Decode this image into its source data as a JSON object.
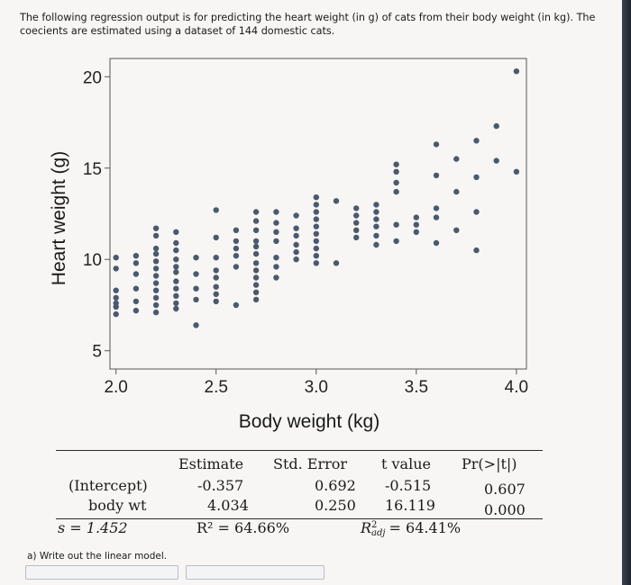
{
  "intro_text": "The following regression output is for predicting the heart weight (in g) of cats from their body weight (in kg). The coecients are estimated using a dataset of 144 domestic cats.",
  "chart_data": {
    "type": "scatter",
    "title": "",
    "xlabel": "Body weight (kg)",
    "ylabel": "Heart weight (g)",
    "xlim": [
      1.97,
      4.05
    ],
    "ylim": [
      4.0,
      21.0
    ],
    "x_ticks": [
      2.0,
      2.5,
      3.0,
      3.5,
      4.0
    ],
    "x_tick_labels": [
      "2.0",
      "2.5",
      "3.0",
      "3.5",
      "4.0"
    ],
    "y_ticks": [
      5,
      10,
      15,
      20
    ],
    "y_tick_labels": [
      "5",
      "10",
      "15",
      "20"
    ],
    "grid": false,
    "point_color": "#4a5a6e",
    "points": [
      [
        2.0,
        7.0
      ],
      [
        2.0,
        7.4
      ],
      [
        2.0,
        7.6
      ],
      [
        2.0,
        7.9
      ],
      [
        2.0,
        8.3
      ],
      [
        2.0,
        9.5
      ],
      [
        2.0,
        10.1
      ],
      [
        2.1,
        7.2
      ],
      [
        2.1,
        7.7
      ],
      [
        2.1,
        8.4
      ],
      [
        2.1,
        9.2
      ],
      [
        2.1,
        9.8
      ],
      [
        2.1,
        10.2
      ],
      [
        2.2,
        7.1
      ],
      [
        2.2,
        7.5
      ],
      [
        2.2,
        7.9
      ],
      [
        2.2,
        8.3
      ],
      [
        2.2,
        8.7
      ],
      [
        2.2,
        9.1
      ],
      [
        2.2,
        9.5
      ],
      [
        2.2,
        9.9
      ],
      [
        2.2,
        10.3
      ],
      [
        2.2,
        10.6
      ],
      [
        2.2,
        11.3
      ],
      [
        2.2,
        11.7
      ],
      [
        2.3,
        7.3
      ],
      [
        2.3,
        7.6
      ],
      [
        2.3,
        8.0
      ],
      [
        2.3,
        8.4
      ],
      [
        2.3,
        8.8
      ],
      [
        2.3,
        9.3
      ],
      [
        2.3,
        9.6
      ],
      [
        2.3,
        10.0
      ],
      [
        2.3,
        10.5
      ],
      [
        2.3,
        10.9
      ],
      [
        2.3,
        11.5
      ],
      [
        2.4,
        6.4
      ],
      [
        2.4,
        7.8
      ],
      [
        2.4,
        8.4
      ],
      [
        2.4,
        9.2
      ],
      [
        2.4,
        10.1
      ],
      [
        2.5,
        7.7
      ],
      [
        2.5,
        8.1
      ],
      [
        2.5,
        8.5
      ],
      [
        2.5,
        9.0
      ],
      [
        2.5,
        9.4
      ],
      [
        2.5,
        10.1
      ],
      [
        2.5,
        11.2
      ],
      [
        2.5,
        12.7
      ],
      [
        2.6,
        7.5
      ],
      [
        2.6,
        9.6
      ],
      [
        2.6,
        10.2
      ],
      [
        2.6,
        10.6
      ],
      [
        2.6,
        11.0
      ],
      [
        2.6,
        11.6
      ],
      [
        2.7,
        7.8
      ],
      [
        2.7,
        8.2
      ],
      [
        2.7,
        8.6
      ],
      [
        2.7,
        9.0
      ],
      [
        2.7,
        9.4
      ],
      [
        2.7,
        9.8
      ],
      [
        2.7,
        10.3
      ],
      [
        2.7,
        10.7
      ],
      [
        2.7,
        11.0
      ],
      [
        2.7,
        11.6
      ],
      [
        2.7,
        12.1
      ],
      [
        2.7,
        12.6
      ],
      [
        2.8,
        9.0
      ],
      [
        2.8,
        9.6
      ],
      [
        2.8,
        10.1
      ],
      [
        2.8,
        11.0
      ],
      [
        2.8,
        11.5
      ],
      [
        2.8,
        12.0
      ],
      [
        2.8,
        12.6
      ],
      [
        2.9,
        10.0
      ],
      [
        2.9,
        10.4
      ],
      [
        2.9,
        10.8
      ],
      [
        2.9,
        11.3
      ],
      [
        2.9,
        11.7
      ],
      [
        2.9,
        12.4
      ],
      [
        3.0,
        9.8
      ],
      [
        3.0,
        10.2
      ],
      [
        3.0,
        10.6
      ],
      [
        3.0,
        11.0
      ],
      [
        3.0,
        11.4
      ],
      [
        3.0,
        11.8
      ],
      [
        3.0,
        12.2
      ],
      [
        3.0,
        12.6
      ],
      [
        3.0,
        13.0
      ],
      [
        3.0,
        13.4
      ],
      [
        3.1,
        9.8
      ],
      [
        3.1,
        13.2
      ],
      [
        3.2,
        11.2
      ],
      [
        3.2,
        11.6
      ],
      [
        3.2,
        12.0
      ],
      [
        3.2,
        12.4
      ],
      [
        3.2,
        12.8
      ],
      [
        3.3,
        10.8
      ],
      [
        3.3,
        11.3
      ],
      [
        3.3,
        11.8
      ],
      [
        3.3,
        12.2
      ],
      [
        3.3,
        12.6
      ],
      [
        3.3,
        13.0
      ],
      [
        3.4,
        11.0
      ],
      [
        3.4,
        11.9
      ],
      [
        3.4,
        13.7
      ],
      [
        3.4,
        14.2
      ],
      [
        3.4,
        14.8
      ],
      [
        3.4,
        15.2
      ],
      [
        3.5,
        11.5
      ],
      [
        3.5,
        11.9
      ],
      [
        3.5,
        12.3
      ],
      [
        3.6,
        10.9
      ],
      [
        3.6,
        12.3
      ],
      [
        3.6,
        12.8
      ],
      [
        3.6,
        14.6
      ],
      [
        3.6,
        16.3
      ],
      [
        3.7,
        11.6
      ],
      [
        3.7,
        13.7
      ],
      [
        3.7,
        15.5
      ],
      [
        3.8,
        10.5
      ],
      [
        3.8,
        12.6
      ],
      [
        3.8,
        14.5
      ],
      [
        3.8,
        16.5
      ],
      [
        3.9,
        15.4
      ],
      [
        3.9,
        17.3
      ],
      [
        4.0,
        14.8
      ],
      [
        4.0,
        20.3
      ]
    ]
  },
  "regression_table": {
    "headers": [
      "Estimate",
      "Std. Error",
      "t value",
      "Pr(>|t|)"
    ],
    "rows": [
      {
        "label": "(Intercept)",
        "estimate": "-0.357",
        "std_error": "0.692",
        "t_value": "-0.515",
        "p_value": "0.607"
      },
      {
        "label": "body wt",
        "estimate": "4.034",
        "std_error": "0.250",
        "t_value": "16.119",
        "p_value": "0.000"
      }
    ],
    "sigma": "s = 1.452",
    "r_squared": "R² = 64.66%",
    "adj_r_squared_symbol": "R",
    "adj_r_squared_sup": "2",
    "adj_r_squared_sub": "adj",
    "adj_r_squared_value": "= 64.41%"
  },
  "question_a": "a) Write out the linear model."
}
